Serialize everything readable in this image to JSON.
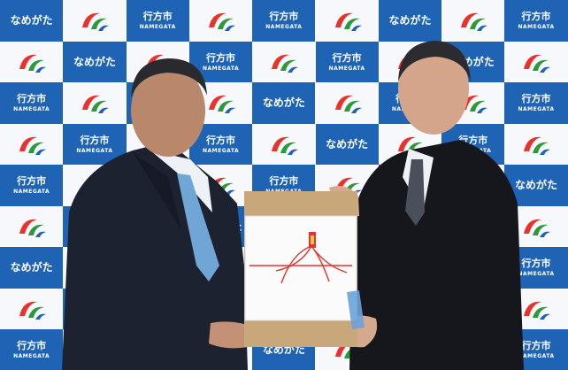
{
  "backdrop": {
    "logo_text_kana": "なめがた",
    "logo_text_city": "行方市",
    "logo_text_roman": "NAMEGATA",
    "colors": {
      "blue": "#1e63b4",
      "white": "#f7f8fb",
      "logo_red": "#e8322c",
      "logo_green": "#2c9a3a",
      "logo_blue": "#1e63b4"
    }
  },
  "gift": {
    "colors": {
      "box": "#c8a77a",
      "noshi": "#fbfbfb",
      "cord_red": "#e8322c"
    }
  }
}
